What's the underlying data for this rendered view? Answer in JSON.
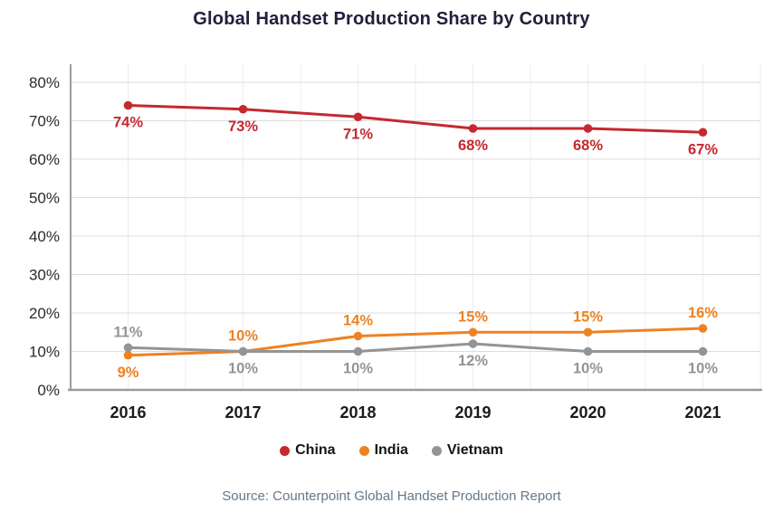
{
  "title": "Global Handset Production Share by Country",
  "source_note": "Source: Counterpoint Global Handset Production Report",
  "colors": {
    "china": "#c5282f",
    "india": "#ef8122",
    "vietnam": "#949494",
    "grid_horizontal": "#dcdcdc",
    "grid_vertical": "#ececec",
    "axis_line": "#9b9b9b"
  },
  "chart_data": {
    "type": "line",
    "title": "Global Handset Production Share by Country",
    "categories": [
      "2016",
      "2017",
      "2018",
      "2019",
      "2020",
      "2021"
    ],
    "series": [
      {
        "name": "China",
        "color": "#c5282f",
        "values": [
          74,
          73,
          71,
          68,
          68,
          67
        ],
        "point_labels": [
          "74%",
          "73%",
          "71%",
          "68%",
          "68%",
          "67%"
        ],
        "label_side": [
          "below",
          "below",
          "below",
          "below",
          "below",
          "below"
        ]
      },
      {
        "name": "India",
        "color": "#ef8122",
        "values": [
          9,
          10,
          14,
          15,
          15,
          16
        ],
        "point_labels": [
          "9%",
          "10%",
          "14%",
          "15%",
          "15%",
          "16%"
        ],
        "label_side": [
          "below",
          "above",
          "above",
          "above",
          "above",
          "above"
        ]
      },
      {
        "name": "Vietnam",
        "color": "#949494",
        "values": [
          11,
          10,
          10,
          12,
          10,
          10
        ],
        "point_labels": [
          "11%",
          "10%",
          "10%",
          "12%",
          "10%",
          "10%"
        ],
        "label_side": [
          "above",
          "below",
          "below",
          "below",
          "below",
          "below"
        ]
      }
    ],
    "y_axis": {
      "min": 0,
      "max": 80,
      "step": 10,
      "tick_labels": [
        "0%",
        "10%",
        "20%",
        "30%",
        "40%",
        "50%",
        "60%",
        "70%",
        "80%"
      ]
    },
    "xlabel": "",
    "ylabel": "",
    "grid": true,
    "legend_position": "bottom",
    "legend": [
      "China",
      "India",
      "Vietnam"
    ]
  }
}
